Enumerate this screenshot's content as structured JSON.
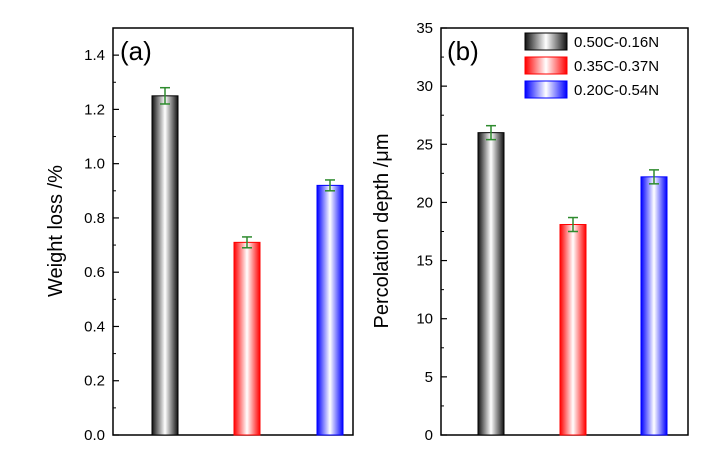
{
  "colors": {
    "series": [
      "#000000",
      "#ff0000",
      "#0000ff"
    ],
    "error_bar": "#2e8b2e",
    "axis": "#000000"
  },
  "legend": {
    "placement": "top-right of panel (b)",
    "entries": [
      "0.50C-0.16N",
      "0.35C-0.37N",
      "0.20C-0.54N"
    ]
  },
  "chart_data": [
    {
      "type": "bar",
      "panel_label": "(a)",
      "ylabel": "Weight loss /%",
      "xlabel": "",
      "ylim": [
        0,
        1.5
      ],
      "yticks": [
        "0.0",
        "0.2",
        "0.4",
        "0.6",
        "0.8",
        "1.0",
        "1.2",
        "1.4"
      ],
      "minor_ticks": true,
      "grid": false,
      "categories": [
        "0.50C-0.16N",
        "0.35C-0.37N",
        "0.20C-0.54N"
      ],
      "values": [
        1.25,
        0.71,
        0.92
      ],
      "errors": [
        0.03,
        0.02,
        0.02
      ]
    },
    {
      "type": "bar",
      "panel_label": "(b)",
      "ylabel": "Percolation depth /μm",
      "xlabel": "",
      "ylim": [
        0,
        35
      ],
      "yticks": [
        "0",
        "5",
        "10",
        "15",
        "20",
        "25",
        "30",
        "35"
      ],
      "minor_ticks": true,
      "grid": false,
      "categories": [
        "0.50C-0.16N",
        "0.35C-0.37N",
        "0.20C-0.54N"
      ],
      "values": [
        26.0,
        18.1,
        22.2
      ],
      "errors": [
        0.6,
        0.6,
        0.6
      ]
    }
  ]
}
